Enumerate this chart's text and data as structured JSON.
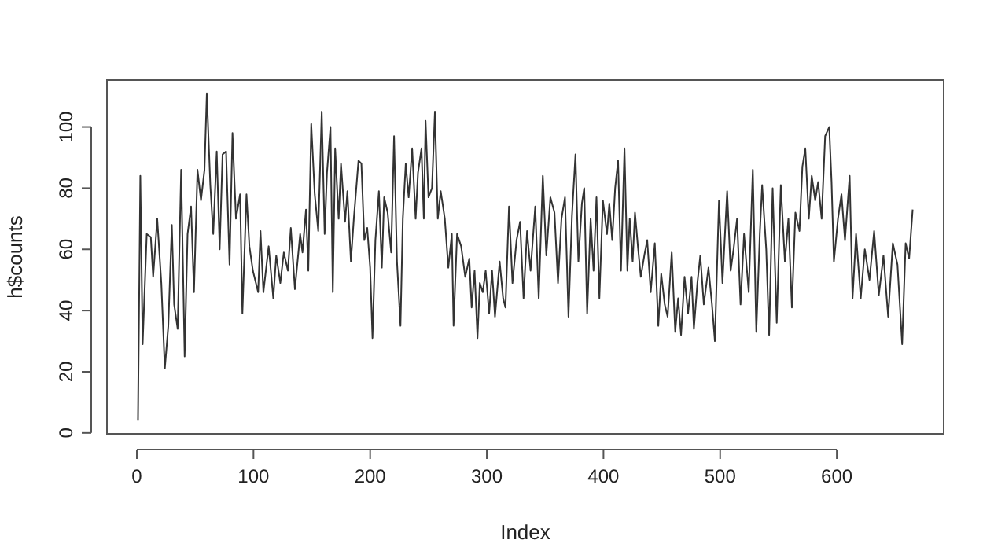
{
  "chart_data": {
    "type": "line",
    "xlabel": "Index",
    "ylabel": "h$counts",
    "xlim": [
      -25.6,
      691.6
    ],
    "ylim": [
      -0.3,
      115.3
    ],
    "xticks": [
      0,
      100,
      200,
      300,
      400,
      500,
      600
    ],
    "yticks": [
      0,
      20,
      40,
      60,
      80,
      100
    ],
    "grid": false,
    "marker": "none",
    "line_style": "solid",
    "series": [
      {
        "color": "#333333",
        "x": [
          1,
          3,
          5,
          8.5,
          12,
          14,
          17.5,
          21,
          24,
          27,
          30,
          32,
          35,
          38,
          41,
          43.5,
          46.5,
          49,
          52,
          55,
          58,
          60,
          63,
          65.5,
          68.5,
          71,
          73.5,
          76.5,
          79.5,
          82,
          85,
          88.5,
          90.5,
          94,
          96.5,
          99.5,
          104,
          106,
          108.5,
          113,
          117,
          119.5,
          123,
          126,
          129.5,
          132,
          135.5,
          140,
          142,
          145,
          147,
          149.5,
          152.5,
          155.5,
          158.5,
          161,
          163,
          166,
          168,
          170,
          173,
          175,
          178.5,
          180.5,
          183.5,
          186,
          190,
          192.5,
          195,
          197.5,
          200,
          202,
          204.5,
          207.5,
          210,
          212,
          215,
          218,
          220.5,
          223,
          226,
          228,
          230.5,
          233,
          236,
          239,
          241,
          244,
          246,
          247.5,
          250,
          253,
          255.5,
          258,
          260.5,
          264,
          267,
          270,
          271.5,
          274.5,
          278,
          281.5,
          285,
          287,
          289.5,
          292,
          294,
          296.5,
          299,
          302,
          304.5,
          307,
          311,
          314,
          316,
          319,
          322,
          325.5,
          328.5,
          331.5,
          334.5,
          337.5,
          341.5,
          344.5,
          348,
          351,
          354.5,
          358,
          361,
          364,
          367,
          370,
          373,
          376,
          378.5,
          381.5,
          383.5,
          386,
          389,
          391.5,
          394,
          396.5,
          399.5,
          403,
          405,
          407.5,
          410,
          412.5,
          415,
          418,
          420.5,
          422.5,
          425,
          427,
          429.5,
          432,
          435,
          437.5,
          440.5,
          444,
          447,
          449.5,
          452.5,
          455,
          458.5,
          461.5,
          464,
          466.5,
          469.5,
          472.5,
          475.5,
          477.5,
          480.5,
          483,
          486,
          490,
          493,
          495.5,
          499,
          502,
          506,
          509,
          511.5,
          514.5,
          517.5,
          520.5,
          524.5,
          528,
          531,
          534,
          536,
          539.5,
          542,
          545,
          548.5,
          552,
          555.5,
          558.5,
          561.5,
          564.5,
          568,
          570.5,
          573,
          576,
          578.5,
          581.5,
          584,
          587,
          590,
          593.5,
          595.5,
          597.5,
          601,
          604,
          607,
          611,
          613.5,
          616.5,
          620.5,
          624,
          628,
          632,
          636,
          640,
          644,
          648,
          652,
          656,
          659,
          662,
          665
        ],
        "values": [
          4,
          84,
          29,
          65,
          64,
          51,
          70,
          49,
          21,
          35,
          68,
          42,
          34,
          86,
          25,
          65,
          74,
          46,
          86,
          76,
          86,
          111,
          81,
          65,
          92,
          60,
          91,
          92,
          55,
          98,
          70,
          78,
          39,
          78,
          61,
          53,
          46,
          66,
          46,
          61,
          44,
          58,
          49,
          59,
          53,
          67,
          47,
          65,
          59,
          73,
          53,
          101,
          78,
          66,
          105,
          65,
          85,
          100,
          46,
          93,
          70,
          88,
          69,
          79,
          56,
          70,
          89,
          88,
          63,
          67,
          54,
          31,
          63,
          79,
          54,
          77,
          72,
          59,
          97,
          56,
          35,
          70,
          88,
          77,
          93,
          70,
          85,
          93,
          70,
          102,
          77,
          80,
          105,
          70,
          79,
          70,
          54,
          65,
          35,
          65,
          61,
          51,
          57,
          41,
          53,
          31,
          49,
          46,
          53,
          39,
          53,
          38,
          56,
          44,
          41,
          74,
          49,
          63,
          69,
          44,
          66,
          53,
          74,
          44,
          84,
          58,
          77,
          72,
          49,
          70,
          77,
          38,
          71,
          91,
          56,
          75,
          80,
          39,
          70,
          53,
          77,
          44,
          76,
          65,
          75,
          63,
          80,
          89,
          53,
          93,
          53,
          70,
          56,
          72,
          61,
          51,
          58,
          63,
          46,
          62,
          35,
          52,
          42,
          38,
          59,
          33,
          44,
          32,
          51,
          39,
          51,
          34,
          49,
          58,
          42,
          54,
          42,
          30,
          76,
          49,
          79,
          53,
          60,
          70,
          42,
          65,
          46,
          86,
          33,
          65,
          81,
          60,
          32,
          80,
          36,
          81,
          56,
          70,
          41,
          72,
          66,
          87,
          93,
          70,
          84,
          76,
          82,
          70,
          97,
          100,
          82,
          56,
          70,
          78,
          63,
          84,
          44,
          65,
          44,
          60,
          50,
          66,
          45,
          58,
          38,
          62,
          55,
          29,
          62,
          57,
          73
        ]
      }
    ]
  }
}
